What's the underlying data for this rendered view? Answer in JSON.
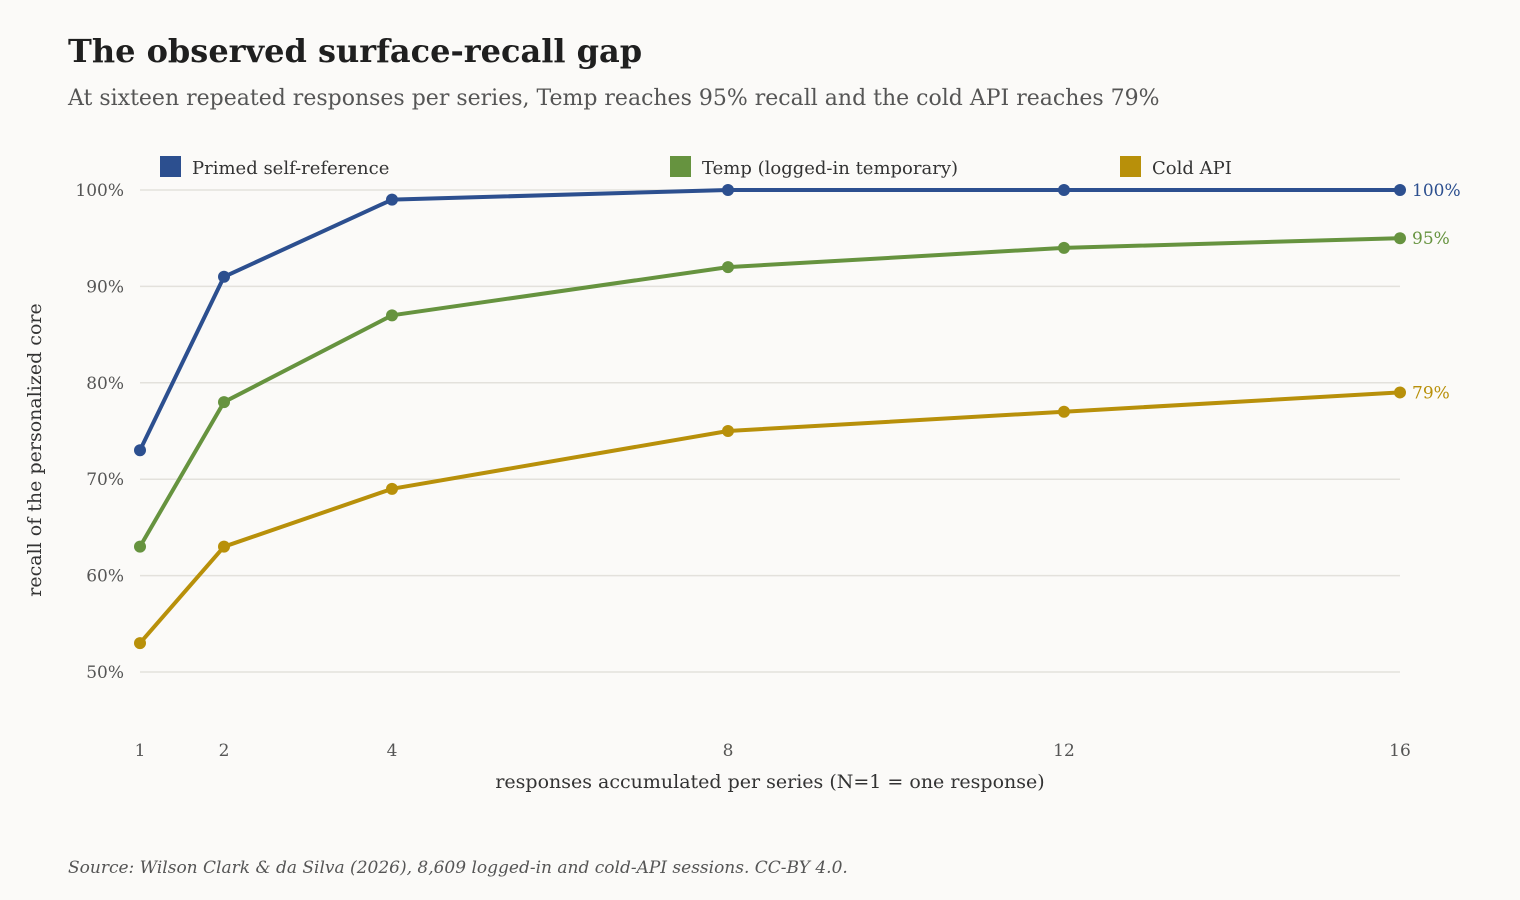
{
  "header": {
    "title": "The observed surface-recall gap",
    "subtitle": "At sixteen repeated responses per series, Temp reaches 95% recall and the cold API reaches 79%"
  },
  "footer": {
    "source": "Source: Wilson Clark & da Silva (2026), 8,609 logged-in and cold-API sessions. CC-BY 4.0."
  },
  "chart_data": {
    "type": "line",
    "title": "The observed surface-recall gap",
    "subtitle": "At sixteen repeated responses per series, Temp reaches 95% recall and the cold API reaches 79%",
    "xlabel": "responses accumulated per series (N=1 = one response)",
    "ylabel": "recall of the personalized core",
    "x": [
      1,
      2,
      4,
      8,
      12,
      16
    ],
    "x_tick_labels": [
      "1",
      "2",
      "4",
      "8",
      "12",
      "16"
    ],
    "ylim": [
      50,
      100
    ],
    "y_ticks": [
      50,
      60,
      70,
      80,
      90,
      100
    ],
    "y_tick_labels": [
      "50%",
      "60%",
      "70%",
      "80%",
      "90%",
      "100%"
    ],
    "grid": "horizontal",
    "legend_position": "top",
    "series": [
      {
        "name": "Primed self-reference",
        "color": "#2c4f8f",
        "values": [
          73,
          91,
          99,
          100,
          100,
          100
        ],
        "end_label": "100%"
      },
      {
        "name": "Temp (logged-in temporary)",
        "color": "#66933f",
        "values": [
          63,
          78,
          87,
          92,
          94,
          95
        ],
        "end_label": "95%"
      },
      {
        "name": "Cold API",
        "color": "#b8900a",
        "values": [
          53,
          63,
          69,
          75,
          77,
          79
        ],
        "end_label": "79%"
      }
    ]
  }
}
